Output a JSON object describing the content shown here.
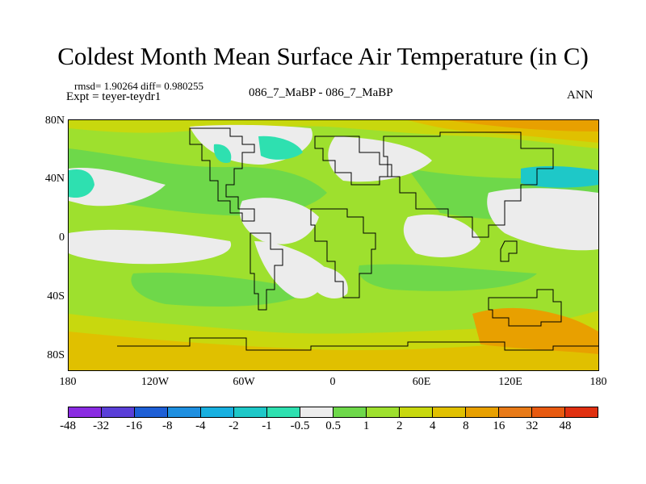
{
  "title": "Coldest Month Mean Surface Air Temperature (in C)",
  "stats": "rmsd= 1.90264 diff= 0.980255",
  "experiment": "Expt = teyer-teydr1",
  "comparison": "086_7_MaBP - 086_7_MaBP",
  "season": "ANN",
  "lat_labels": [
    "80N",
    "40N",
    "0",
    "40S",
    "80S"
  ],
  "lon_labels": [
    "180",
    "120W",
    "60W",
    "0",
    "60E",
    "120E",
    "180"
  ],
  "colorbar": {
    "colors": [
      "#8a2be2",
      "#5a3fd8",
      "#1e5fd6",
      "#1e8fe0",
      "#18b0e0",
      "#1ec8c8",
      "#2ee0b0",
      "#ececec",
      "#6ed84a",
      "#9ee02e",
      "#c8d80e",
      "#e0c000",
      "#e8a000",
      "#e87a18",
      "#e85a10",
      "#e03010"
    ],
    "labels": [
      "-48",
      "-32",
      "-16",
      "-8",
      "-4",
      "-2",
      "-1",
      "-0.5",
      "0.5",
      "1",
      "2",
      "4",
      "8",
      "16",
      "32",
      "48"
    ]
  }
}
